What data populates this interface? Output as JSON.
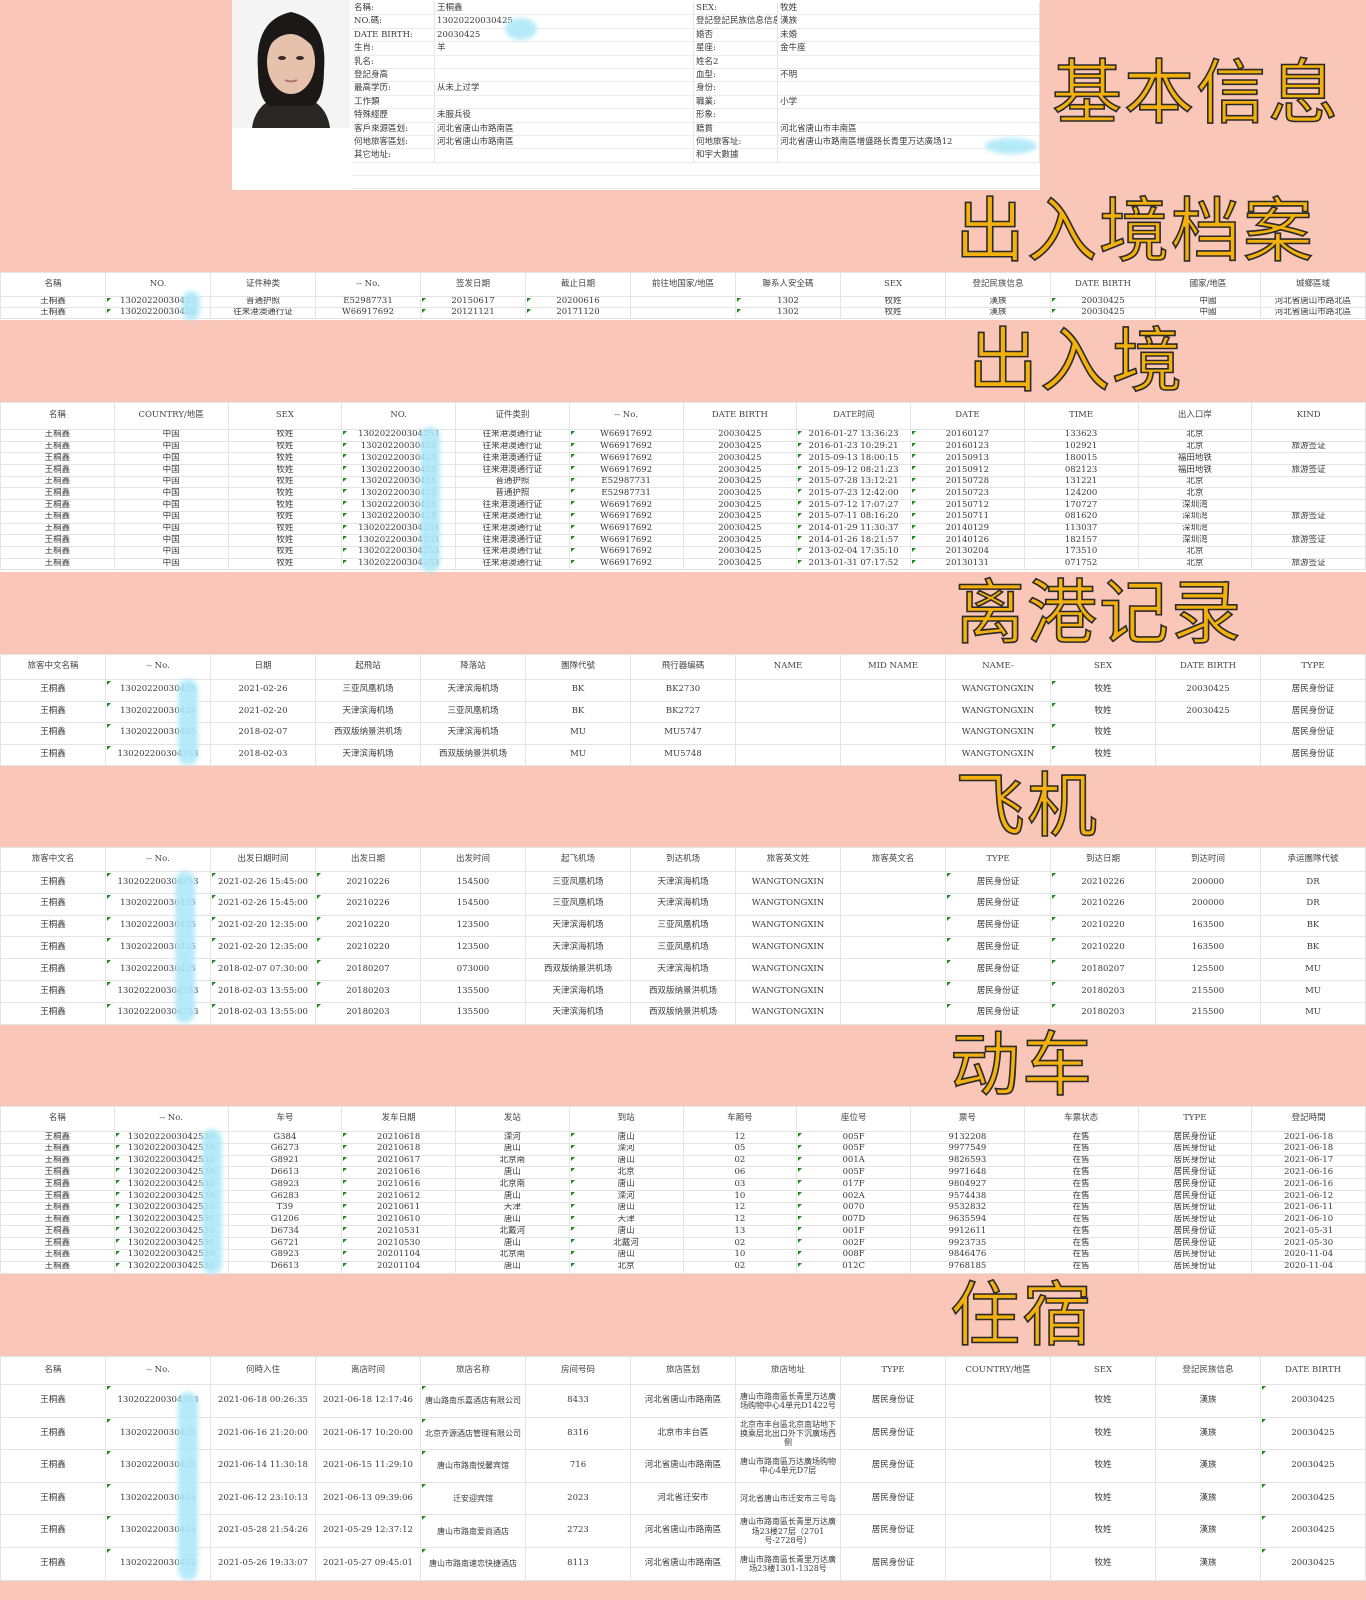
{
  "info": {
    "rows": [
      [
        "名稱:",
        "王桐鑫",
        "SEX:",
        "牧姓"
      ],
      [
        "NO.碼:",
        "13020220030425",
        "登記登記民族信息信息:",
        "漢族"
      ],
      [
        "DATE BIRTH:",
        "20030425",
        "婚否",
        "未婚"
      ],
      [
        "生肖:",
        "羊",
        "星座:",
        "金牛座"
      ],
      [
        "乳名:",
        "",
        "姓名2",
        ""
      ],
      [
        "登記身高",
        "",
        "血型:",
        "不明"
      ],
      [
        "最高学历:",
        "从未上过学",
        "身份:",
        ""
      ],
      [
        "工作類",
        "",
        "職業:",
        "小学"
      ],
      [
        "特殊經歷",
        "未服兵役",
        "形象:",
        ""
      ],
      [
        "客戶來源區划:",
        "河北省唐山市路南區",
        "籍貫",
        "河北省唐山市丰南區"
      ],
      [
        "何地旅客區划:",
        "河北省唐山市路南區",
        "何地旅客址:",
        "河北省唐山市路南區增盛路长青里万达廣场12"
      ],
      [
        "其它地址:",
        "",
        "和宇大數據",
        ""
      ]
    ]
  },
  "stamps": {
    "basic": "基本信息",
    "archive": "出入境档案",
    "border": "出入境",
    "departure": "离港记录",
    "flight": "飞机",
    "train": "动车",
    "hotel": "住宿"
  },
  "accent_color": "#f4b10e",
  "background_color": "#f9c6b8",
  "sections": {
    "archive": {
      "headers": [
        "名稱",
        "NO.",
        "证件种类",
        "-- No.",
        "签发日期",
        "截止日期",
        "前往地国家/地區",
        "聯系人安全碼",
        "SEX",
        "登記民族信息",
        "DATE BIRTH",
        "國家/地區",
        "城鄉區域"
      ],
      "rows": [
        [
          "王桐鑫",
          "13020220030425",
          "普通护照",
          "E52987731",
          "20150617",
          "20200616",
          "",
          "1302",
          "牧姓",
          "漢族",
          "20030425",
          "中國",
          "河北省唐山市路北區"
        ],
        [
          "王桐鑫",
          "13020220030425",
          "往来港澳通行证",
          "W66917692",
          "20121121",
          "20171120",
          "",
          "1302",
          "牧姓",
          "漢族",
          "20030425",
          "中國",
          "河北省唐山市路北區"
        ]
      ]
    },
    "border": {
      "headers": [
        "名稱",
        "COUNTRY/地區",
        "SEX",
        "NO.",
        "证件类别",
        "-- No.",
        "DATE BIRTH",
        "DATE时间",
        "DATE",
        "TIME",
        "出入口岸",
        "KIND"
      ],
      "rows": [
        [
          "王桐鑫",
          "中国",
          "牧姓",
          "130202200304253",
          "往来港澳通行证",
          "W66917692",
          "20030425",
          "2016-01-27 13:36:23",
          "20160127",
          "133623",
          "北京",
          ""
        ],
        [
          "王桐鑫",
          "中国",
          "牧姓",
          "13020220030425",
          "往来港澳通行证",
          "W66917692",
          "20030425",
          "2016-01-23 10:29:21",
          "20160123",
          "102921",
          "北京",
          "旅游签证"
        ],
        [
          "王桐鑫",
          "中国",
          "牧姓",
          "13020220030425",
          "往来港澳通行证",
          "W66917692",
          "20030425",
          "2015-09-13 18:00:15",
          "20150913",
          "180015",
          "福田地铁",
          ""
        ],
        [
          "王桐鑫",
          "中国",
          "牧姓",
          "13020220030425",
          "往来港澳通行证",
          "W66917692",
          "20030425",
          "2015-09-12 08:21:23",
          "20150912",
          "082123",
          "福田地铁",
          "旅游签证"
        ],
        [
          "王桐鑫",
          "中国",
          "牧姓",
          "13020220030425",
          "普通护照",
          "E52987731",
          "20030425",
          "2015-07-28 13:12:21",
          "20150728",
          "131221",
          "北京",
          ""
        ],
        [
          "王桐鑫",
          "中国",
          "牧姓",
          "13020220030425",
          "普通护照",
          "E52987731",
          "20030425",
          "2015-07-23 12:42:00",
          "20150723",
          "124200",
          "北京",
          ""
        ],
        [
          "王桐鑫",
          "中国",
          "牧姓",
          "13020220030425",
          "往来港澳通行证",
          "W66917692",
          "20030425",
          "2015-07-12 17:07:27",
          "20150712",
          "170727",
          "深圳湾",
          ""
        ],
        [
          "王桐鑫",
          "中国",
          "牧姓",
          "13020220030425",
          "往来港澳通行证",
          "W66917692",
          "20030425",
          "2015-07-11 08:16:20",
          "20150711",
          "081620",
          "深圳湾",
          "旅游签证"
        ],
        [
          "王桐鑫",
          "中国",
          "牧姓",
          "130202200304253",
          "往来港澳通行证",
          "W66917692",
          "20030425",
          "2014-01-29 11:30:37",
          "20140129",
          "113037",
          "深圳湾",
          ""
        ],
        [
          "王桐鑫",
          "中国",
          "牧姓",
          "130202200304253",
          "往来港澳通行证",
          "W66917692",
          "20030425",
          "2014-01-26 18:21:57",
          "20140126",
          "182157",
          "深圳湾",
          "旅游签证"
        ],
        [
          "王桐鑫",
          "中国",
          "牧姓",
          "130202200304253",
          "往来港澳通行证",
          "W66917692",
          "20030425",
          "2013-02-04 17:35:10",
          "20130204",
          "173510",
          "北京",
          ""
        ],
        [
          "王桐鑫",
          "中国",
          "牧姓",
          "130202200304253",
          "往来港澳通行证",
          "W66917692",
          "20030425",
          "2013-01-31 07:17:52",
          "20130131",
          "071752",
          "北京",
          "旅游签证"
        ]
      ]
    },
    "departure": {
      "headers": [
        "旅客中文名稱",
        "-- No.",
        "日期",
        "起飛站",
        "降落站",
        "團隊代號",
        "飛行器编碼",
        "NAME",
        "MID NAME",
        "NAME-",
        "SEX",
        "DATE BIRTH",
        "TYPE"
      ],
      "rows": [
        [
          "王桐鑫",
          "13020220030425",
          "2021-02-26",
          "三亚凤凰机场",
          "天津滨海机场",
          "BK",
          "BK2730",
          "",
          "",
          "WANGTONGXIN",
          "牧姓",
          "20030425",
          "居民身份证"
        ],
        [
          "王桐鑫",
          "13020220030425",
          "2021-02-20",
          "天津滨海机场",
          "三亚凤凰机场",
          "BK",
          "BK2727",
          "",
          "",
          "WANGTONGXIN",
          "牧姓",
          "20030425",
          "居民身份证"
        ],
        [
          "王桐鑫",
          "13020220030425",
          "2018-02-07",
          "西双版纳景洪机场",
          "天津滨海机场",
          "MU",
          "MU5747",
          "",
          "",
          "WANGTONGXIN",
          "牧姓",
          "",
          "居民身份证"
        ],
        [
          "王桐鑫",
          "130202200304253",
          "2018-02-03",
          "天津滨海机场",
          "西双版纳景洪机场",
          "MU",
          "MU5748",
          "",
          "",
          "WANGTONGXIN",
          "牧姓",
          "",
          "居民身份证"
        ]
      ]
    },
    "flight": {
      "headers": [
        "旅客中文名",
        "-- No.",
        "出发日期时间",
        "出发日期",
        "出发时间",
        "起飞机场",
        "到达机场",
        "旅客英文姓",
        "旅客英文名",
        "TYPE",
        "到达日期",
        "到达时间",
        "承运團隊代號"
      ],
      "rows": [
        [
          "王桐鑫",
          "130202200304253",
          "2021-02-26 15:45:00",
          "20210226",
          "154500",
          "三亚凤凰机场",
          "天津滨海机场",
          "WANGTONGXIN",
          "",
          "居民身份证",
          "20210226",
          "200000",
          "DR"
        ],
        [
          "王桐鑫",
          "13020220030425",
          "2021-02-26 15:45:00",
          "20210226",
          "154500",
          "三亚凤凰机场",
          "天津滨海机场",
          "WANGTONGXIN",
          "",
          "居民身份证",
          "20210226",
          "200000",
          "DR"
        ],
        [
          "王桐鑫",
          "13020220030425",
          "2021-02-20 12:35:00",
          "20210220",
          "123500",
          "天津滨海机场",
          "三亚凤凰机场",
          "WANGTONGXIN",
          "",
          "居民身份证",
          "20210220",
          "163500",
          "BK"
        ],
        [
          "王桐鑫",
          "13020220030425",
          "2021-02-20 12:35:00",
          "20210220",
          "123500",
          "天津滨海机场",
          "三亚凤凰机场",
          "WANGTONGXIN",
          "",
          "居民身份证",
          "20210220",
          "163500",
          "BK"
        ],
        [
          "王桐鑫",
          "13020220030425",
          "2018-02-07 07:30:00",
          "20180207",
          "073000",
          "西双版纳景洪机场",
          "天津滨海机场",
          "WANGTONGXIN",
          "",
          "居民身份证",
          "20180207",
          "125500",
          "MU"
        ],
        [
          "王桐鑫",
          "130202200304253",
          "2018-02-03 13:55:00",
          "20180203",
          "135500",
          "天津滨海机场",
          "西双版纳景洪机场",
          "WANGTONGXIN",
          "",
          "居民身份证",
          "20180203",
          "215500",
          "MU"
        ],
        [
          "王桐鑫",
          "130202200304253",
          "2018-02-03 13:55:00",
          "20180203",
          "135500",
          "天津滨海机场",
          "西双版纳景洪机场",
          "WANGTONGXIN",
          "",
          "居民身份证",
          "20180203",
          "215500",
          "MU"
        ]
      ]
    },
    "train": {
      "headers": [
        "名稱",
        "-- No.",
        "车号",
        "发车日期",
        "发站",
        "到站",
        "车厢号",
        "座位号",
        "票号",
        "车票状态",
        "TYPE",
        "登記時間"
      ],
      "rows": [
        [
          "王桐鑫",
          "1302022003042530",
          "G384",
          "20210618",
          "滦河",
          "唐山",
          "12",
          "005F",
          "9132208",
          "在售",
          "居民身份证",
          "2021-06-18"
        ],
        [
          "王桐鑫",
          "1302022003042530",
          "G6273",
          "20210618",
          "唐山",
          "滦河",
          "05",
          "005F",
          "9977549",
          "在售",
          "居民身份证",
          "2021-06-18"
        ],
        [
          "王桐鑫",
          "1302022003042530",
          "G8921",
          "20210617",
          "北京南",
          "唐山",
          "02",
          "001A",
          "9826593",
          "在售",
          "居民身份证",
          "2021-06-17"
        ],
        [
          "王桐鑫",
          "1302022003042530",
          "D6613",
          "20210616",
          "唐山",
          "北京",
          "06",
          "005F",
          "9971648",
          "在售",
          "居民身份证",
          "2021-06-16"
        ],
        [
          "王桐鑫",
          "1302022003042530",
          "G8923",
          "20210616",
          "北京南",
          "唐山",
          "03",
          "017F",
          "9804927",
          "在售",
          "居民身份证",
          "2021-06-16"
        ],
        [
          "王桐鑫",
          "1302022003042530",
          "G6283",
          "20210612",
          "唐山",
          "滦河",
          "10",
          "002A",
          "9574438",
          "在售",
          "居民身份证",
          "2021-06-12"
        ],
        [
          "王桐鑫",
          "1302022003042530",
          "T39",
          "20210611",
          "天津",
          "唐山",
          "12",
          "0070",
          "9532832",
          "在售",
          "居民身份证",
          "2021-06-11"
        ],
        [
          "王桐鑫",
          "1302022003042530",
          "G1206",
          "20210610",
          "唐山",
          "天津",
          "12",
          "007D",
          "9635594",
          "在售",
          "居民身份证",
          "2021-06-10"
        ],
        [
          "王桐鑫",
          "1302022003042530",
          "D6734",
          "20210531",
          "北戴河",
          "唐山",
          "13",
          "001F",
          "9912611",
          "在售",
          "居民身份证",
          "2021-05-31"
        ],
        [
          "王桐鑫",
          "1302022003042530",
          "G6721",
          "20210530",
          "唐山",
          "北戴河",
          "02",
          "002F",
          "9923735",
          "在售",
          "居民身份证",
          "2021-05-30"
        ],
        [
          "王桐鑫",
          "1302022003042530",
          "G8923",
          "20201104",
          "北京南",
          "唐山",
          "10",
          "008F",
          "9846476",
          "在售",
          "居民身份证",
          "2020-11-04"
        ],
        [
          "王桐鑫",
          "1302022003042530",
          "D6613",
          "20201104",
          "唐山",
          "北京",
          "02",
          "012C",
          "9768185",
          "在售",
          "居民身份证",
          "2020-11-04"
        ]
      ]
    },
    "hotel": {
      "headers": [
        "名稱",
        "-- No.",
        "何時入住",
        "离店时间",
        "旅店名称",
        "房间号码",
        "旅店區划",
        "旅店地址",
        "TYPE",
        "COUNTRY/地區",
        "SEX",
        "登記民族信息",
        "DATE BIRTH"
      ],
      "rows": [
        [
          "王桐鑫",
          "130202200304253",
          "2021-06-18 00:26:35",
          "2021-06-18 12:17:46",
          "唐山路南乐嘉酒店有限公司",
          "8433",
          "河北省唐山市路南區",
          "唐山市路南區长青里万达廣场购物中心4单元D1422号",
          "居民身份证",
          "",
          "牧姓",
          "漢族",
          "20030425"
        ],
        [
          "王桐鑫",
          "13020220030425",
          "2021-06-16 21:20:00",
          "2021-06-17 10:20:00",
          "北京齐源酒店管理有限公司",
          "8316",
          "北京市丰台區",
          "北京市丰台區北京南站地下换乘层北出口外下沉廣场西侧",
          "居民身份证",
          "",
          "牧姓",
          "漢族",
          "20030425"
        ],
        [
          "王桐鑫",
          "13020220030425",
          "2021-06-14 11:30:18",
          "2021-06-15 11:29:10",
          "唐山市路南悦馨宾馆",
          "716",
          "河北省唐山市路南區",
          "唐山市路南區万达廣场购物中心4单元D7层",
          "居民身份证",
          "",
          "牧姓",
          "漢族",
          "20030425"
        ],
        [
          "王桐鑫",
          "13020220030425",
          "2021-06-12 23:10:13",
          "2021-06-13 09:39:06",
          "迁安迎宾馆",
          "2023",
          "河北省迁安市",
          "河北省唐山市迁安市三号岛",
          "居民身份证",
          "",
          "牧姓",
          "漢族",
          "20030425"
        ],
        [
          "王桐鑫",
          "13020220030425",
          "2021-05-28 21:54:26",
          "2021-05-29 12:37:12",
          "唐山市路南爱尚酒店",
          "2723",
          "河北省唐山市路南區",
          "唐山市路南區长青里万达廣场23楼27层（2701号-2728号）",
          "居民身份证",
          "",
          "牧姓",
          "漢族",
          "20030425"
        ],
        [
          "王桐鑫",
          "13020220030425",
          "2021-05-26 19:33:07",
          "2021-05-27 09:45:01",
          "唐山市路南速恋快捷酒店",
          "8113",
          "河北省唐山市路南區",
          "唐山市路南區长青里万达廣场23楼1301-1328号",
          "居民身份证",
          "",
          "牧姓",
          "漢族",
          "20030425"
        ]
      ]
    }
  }
}
